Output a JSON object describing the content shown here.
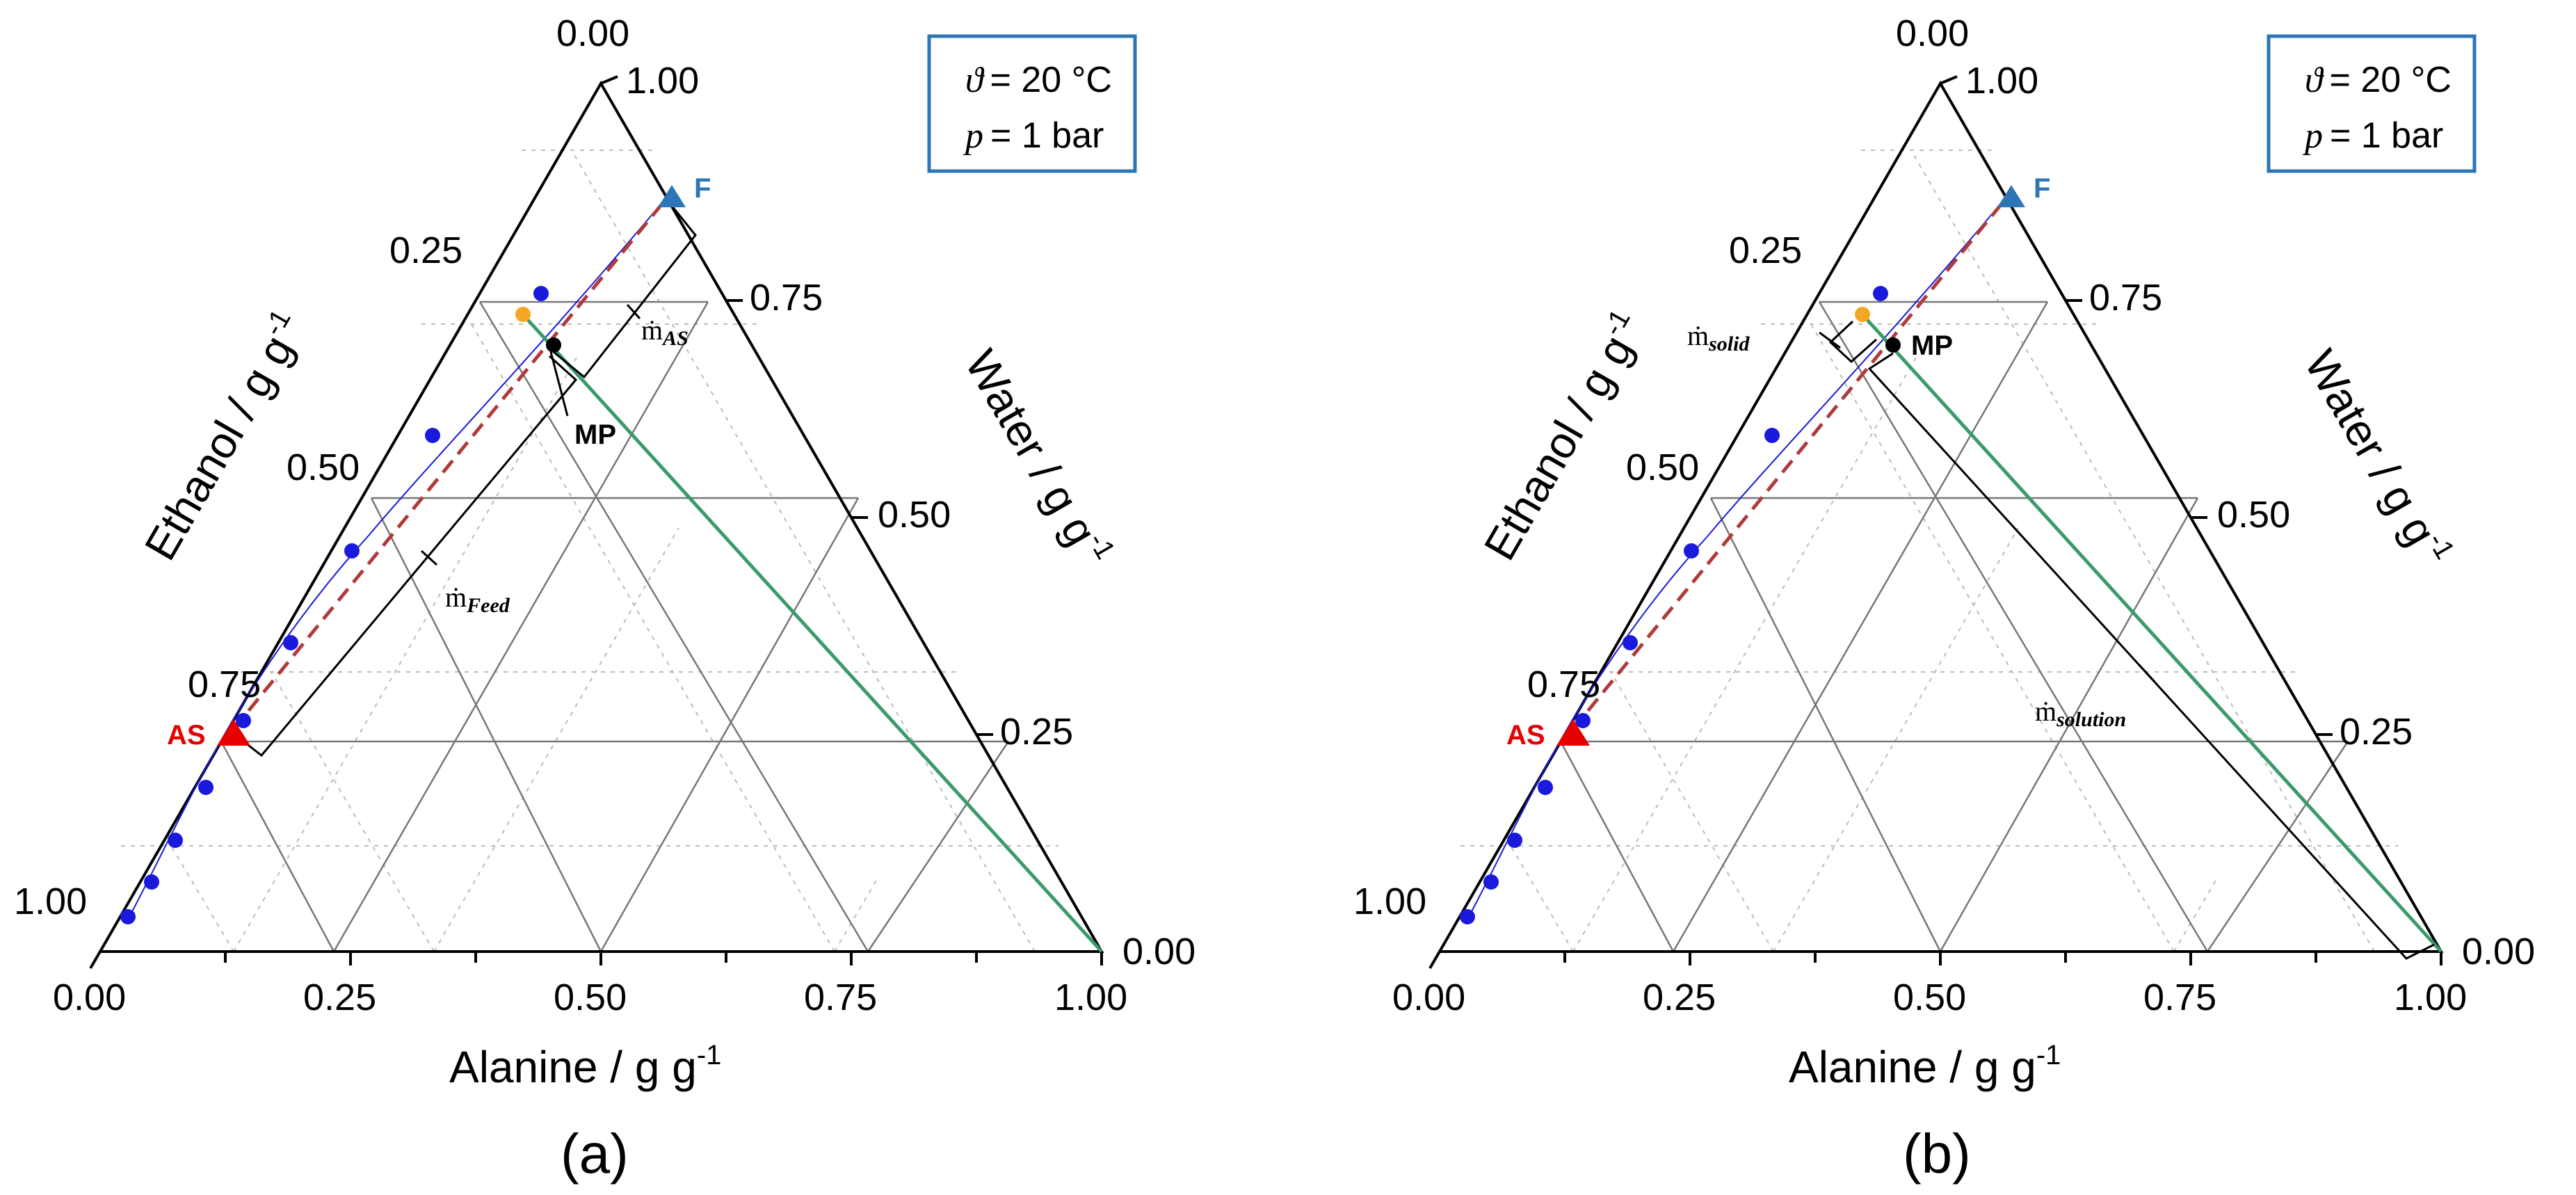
{
  "conditions": {
    "temperature_symbol": "ϑ",
    "temperature_value": "= 20 °C",
    "pressure_symbol": "p",
    "pressure_value": "= 1 bar"
  },
  "axes": {
    "alanine_title": "Alanine / g g",
    "alanine_exp": "-1",
    "ethanol_title": "Ethanol / g g",
    "ethanol_exp": "-1",
    "water_title": "Water / g g",
    "water_exp": "-1",
    "bottom_ticks": [
      "0.00",
      "0.25",
      "0.50",
      "0.75",
      "1.00"
    ],
    "left_ticks": [
      "0.00",
      "0.25",
      "0.50",
      "0.75",
      "1.00"
    ],
    "right_ticks": [
      "1.00",
      "0.75",
      "0.50",
      "0.25",
      "0.00"
    ]
  },
  "points": {
    "feed": "F",
    "antisolvent": "AS",
    "mixing_point": "MP"
  },
  "panels": [
    {
      "label": "(a)",
      "flows": [
        {
          "main": "ṁ",
          "sub": "AS"
        },
        {
          "main": "ṁ",
          "sub": "Feed"
        }
      ]
    },
    {
      "label": "(b)",
      "flows": [
        {
          "main": "ṁ",
          "sub": "solid"
        },
        {
          "main": "ṁ",
          "sub": "solution"
        }
      ]
    }
  ],
  "chart_data": {
    "type": "scatter",
    "diagram": "ternary",
    "components": [
      "Alanine",
      "Ethanol",
      "Water"
    ],
    "solubility_points_ethanol_water": [
      [
        0.96,
        0.04
      ],
      [
        0.9,
        0.1
      ],
      [
        0.84,
        0.16
      ],
      [
        0.77,
        0.23
      ],
      [
        0.73,
        0.27
      ],
      [
        0.63,
        0.37
      ],
      [
        0.48,
        0.52
      ],
      [
        0.27,
        0.73
      ],
      [
        0.21,
        0.79
      ]
    ],
    "colors": {
      "solubility": "#1a1adc",
      "feed": "#2e75b6",
      "antisolvent": "#e60000",
      "mixing_point": "#000000",
      "tie_line": "#3a9a6a",
      "dashed_line": "#b03a3a",
      "condition_box": "#2e75b6",
      "orange_point": "#f5a623"
    }
  }
}
